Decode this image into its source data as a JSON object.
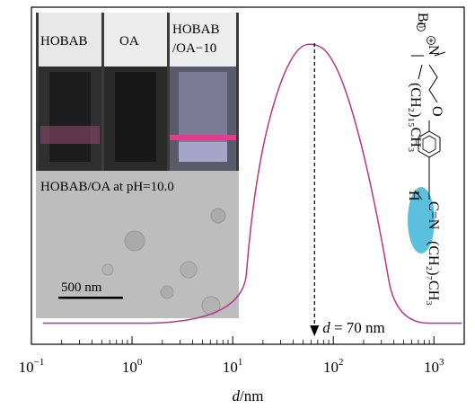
{
  "chart_data": {
    "type": "line",
    "xlabel": "d/nm",
    "xscale": "log",
    "xlim": [
      0.1,
      2000
    ],
    "x_ticks": [
      0.1,
      1,
      10,
      100,
      1000
    ],
    "x_tick_labels": [
      {
        "base": "10",
        "exp": "−1"
      },
      {
        "base": "10",
        "exp": "0"
      },
      {
        "base": "10",
        "exp": "1"
      },
      {
        "base": "10",
        "exp": "2"
      },
      {
        "base": "10",
        "exp": "3"
      }
    ],
    "ylim": [
      0,
      1
    ],
    "series": [
      {
        "color": "#b5368f",
        "x": [
          0.13,
          12.5,
          15,
          20,
          30,
          45,
          65,
          90,
          130,
          200,
          300,
          420,
          1900
        ],
        "y": [
          0.07,
          0.07,
          0.4,
          0.67,
          0.88,
          0.99,
          1.0,
          0.97,
          0.86,
          0.64,
          0.36,
          0.07,
          0.07
        ]
      }
    ],
    "annotation": {
      "x": 65,
      "text": "d = 70 nm",
      "italic_part": "d",
      "rest": " = 70 nm"
    }
  },
  "inset": {
    "vial_labels": [
      "HOBAB",
      "OA",
      "HOBAB",
      "/OA−10"
    ],
    "tem_caption": "HOBAB/OA at pH=10.0",
    "scale_bar": "500 nm"
  },
  "structure": {
    "br": "Br",
    "n": "N",
    "o": "O",
    "h": "H",
    "imine": "C=N",
    "tail_top": "(CH₂)₁₅CH₃",
    "tail_bottom": "(CH₂)₇CH₃",
    "highlight_color": "#5bc0de"
  },
  "colors": {
    "curve": "#b5368f",
    "axis": "#000000"
  }
}
